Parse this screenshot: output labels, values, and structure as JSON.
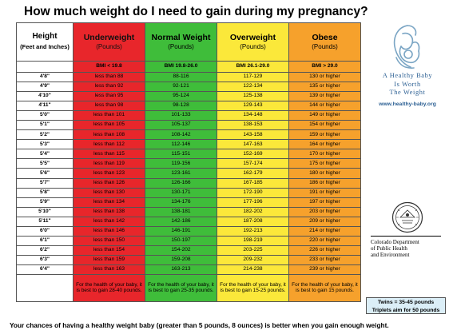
{
  "title": "How much weight do I need to gain during my pregnancy?",
  "headers": {
    "height": {
      "label": "Height",
      "unit": "(Feet and Inches)"
    },
    "underweight": {
      "label": "Underweight",
      "unit": "(Pounds)",
      "bmi": "BMI < 19.8"
    },
    "normal": {
      "label": "Normal Weight",
      "unit": "(Pounds)",
      "bmi": "BMI 19.8-26.0"
    },
    "overweight": {
      "label": "Overweight",
      "unit": "(Pounds)",
      "bmi": "BMI 26.1-29.0"
    },
    "obese": {
      "label": "Obese",
      "unit": "(Pounds)",
      "bmi": "BMI > 29.0"
    }
  },
  "rows": [
    {
      "height": "4'8\"",
      "under": "less than 88",
      "normal": "88-116",
      "over": "117-129",
      "obese": "130 or higher"
    },
    {
      "height": "4'9\"",
      "under": "less than 92",
      "normal": "92-121",
      "over": "122-134",
      "obese": "135 or higher"
    },
    {
      "height": "4'10\"",
      "under": "less than 95",
      "normal": "95-124",
      "over": "125-138",
      "obese": "139 or higher"
    },
    {
      "height": "4'11\"",
      "under": "less than 98",
      "normal": "98-128",
      "over": "129-143",
      "obese": "144 or higher"
    },
    {
      "height": "5'0\"",
      "under": "less than 101",
      "normal": "101-133",
      "over": "134-148",
      "obese": "149 or higher"
    },
    {
      "height": "5'1\"",
      "under": "less than 105",
      "normal": "105-137",
      "over": "138-153",
      "obese": "154 or higher"
    },
    {
      "height": "5'2\"",
      "under": "less than 108",
      "normal": "108-142",
      "over": "143-158",
      "obese": "159 or higher"
    },
    {
      "height": "5'3\"",
      "under": "less than 112",
      "normal": "112-146",
      "over": "147-163",
      "obese": "164 or higher"
    },
    {
      "height": "5'4\"",
      "under": "less than 115",
      "normal": "115-151",
      "over": "152-169",
      "obese": "170 or higher"
    },
    {
      "height": "5'5\"",
      "under": "less than 119",
      "normal": "119-156",
      "over": "157-174",
      "obese": "175 or higher"
    },
    {
      "height": "5'6\"",
      "under": "less than 123",
      "normal": "123-161",
      "over": "162-179",
      "obese": "180 or higher"
    },
    {
      "height": "5'7\"",
      "under": "less than 126",
      "normal": "126-166",
      "over": "167-185",
      "obese": "186 or higher"
    },
    {
      "height": "5'8\"",
      "under": "less than 130",
      "normal": "130-171",
      "over": "172-190",
      "obese": "191 or higher"
    },
    {
      "height": "5'9\"",
      "under": "less than 134",
      "normal": "134-176",
      "over": "177-196",
      "obese": "197 or higher"
    },
    {
      "height": "5'10\"",
      "under": "less than 138",
      "normal": "138-181",
      "over": "182-202",
      "obese": "203 or higher"
    },
    {
      "height": "5'11\"",
      "under": "less than 142",
      "normal": "142-186",
      "over": "187-208",
      "obese": "209 or higher"
    },
    {
      "height": "6'0\"",
      "under": "less than 146",
      "normal": "146-191",
      "over": "192-213",
      "obese": "214 or higher"
    },
    {
      "height": "6'1\"",
      "under": "less than 150",
      "normal": "150-197",
      "over": "198-219",
      "obese": "220 or higher"
    },
    {
      "height": "6'2\"",
      "under": "less than 154",
      "normal": "154-202",
      "over": "203-225",
      "obese": "226 or higher"
    },
    {
      "height": "6'3\"",
      "under": "less than 159",
      "normal": "159-208",
      "over": "209-232",
      "obese": "233 or higher"
    },
    {
      "height": "6'4\"",
      "under": "less than 163",
      "normal": "163-213",
      "over": "214-238",
      "obese": "239 or higher"
    }
  ],
  "gain": {
    "underweight": "For the health of your baby, it is best to gain 28-40 pounds.",
    "normal": "For the health of your baby, it is best to gain 25-35 pounds.",
    "overweight": "For the health of your baby, it is best to gain 15-25 pounds.",
    "obese": "For the health of your baby, it is best to gain 15 pounds."
  },
  "twins": {
    "line1": "Twins = 35-45 pounds",
    "line2": "Triplets aim for 50 pounds"
  },
  "logo": {
    "line1": "A Healthy Baby",
    "line2": "Is Worth",
    "line3": "The Weight",
    "url": "www.healthy-baby.org",
    "icon": "mother-and-child-icon"
  },
  "agency": {
    "seal_icon": "state-of-colorado-seal-icon",
    "line1": "Colorado Department",
    "line2": "of Public Health",
    "line3": "and Environment"
  },
  "footer": "Your chances of having a healthy weight baby (greater than 5 pounds, 8 ounces) is better when you gain enough weight.",
  "colors": {
    "underweight": "#e8262b",
    "normal": "#3fbd3a",
    "overweight": "#fbe83a",
    "obese": "#f6a12c",
    "twins_bg": "#dbeef7",
    "logo_blue": "#2b5f93"
  }
}
